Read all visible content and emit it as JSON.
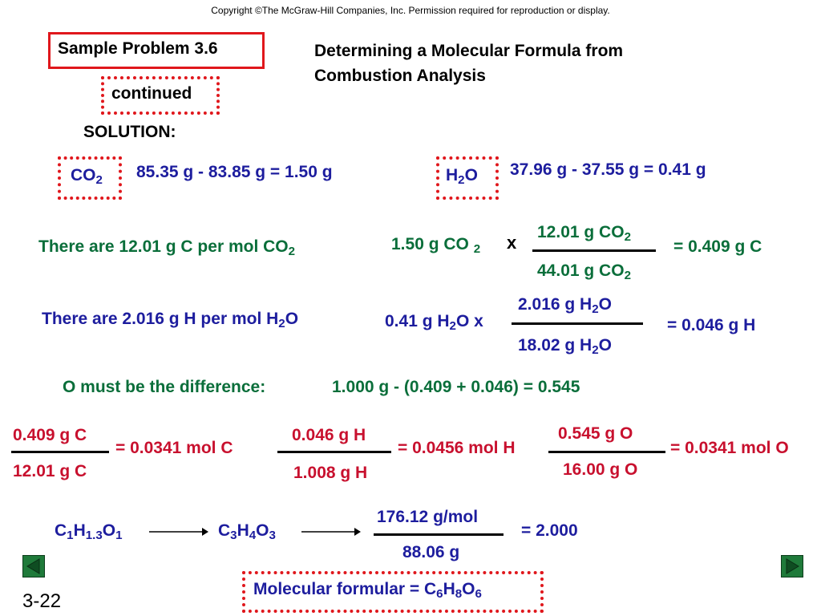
{
  "copyright": "Copyright ©The McGraw-Hill Companies, Inc.  Permission required for reproduction or display.",
  "sample_problem": "Sample Problem 3.6",
  "continued": "continued",
  "heading_line1": "Determining a Molecular Formula from",
  "heading_line2": "Combustion Analysis",
  "solution": "SOLUTION:",
  "co2_label": "CO",
  "co2_calc": "85.35 g - 83.85 g = 1.50 g",
  "h2o_label_h": "H",
  "h2o_label_o": "O",
  "h2o_calc": "37.96 g - 37.55 g = 0.41 g",
  "carbon_statement": "There are 12.01 g C per mol CO",
  "carbon_given": "1.50 g CO",
  "carbon_x": "x",
  "carbon_num": "12.01 g CO",
  "carbon_den": "44.01 g CO",
  "carbon_result": "= 0.409 g C",
  "hydrogen_statement_a": "There are 2.016 g H per mol H",
  "hydrogen_statement_b": "O",
  "hydrogen_given_a": "0.41 g H",
  "hydrogen_given_b": "O x",
  "hydrogen_num_a": "2.016 g H",
  "hydrogen_num_b": "O",
  "hydrogen_den_a": "18.02 g H",
  "hydrogen_den_b": "O",
  "hydrogen_result": "= 0.046 g H",
  "oxygen_statement": "O must be the difference:",
  "oxygen_calc": "1.000 g - (0.409 + 0.046) = 0.545",
  "mol_c_num": "0.409 g C",
  "mol_c_den": "12.01 g C",
  "mol_c_result": "= 0.0341 mol C",
  "mol_h_num": "0.046 g H",
  "mol_h_den": "1.008 g H",
  "mol_h_result": "= 0.0456 mol H",
  "mol_o_num": "0.545 g O",
  "mol_o_den": "16.00 g O",
  "mol_o_result": "= 0.0341 mol O",
  "formula1": {
    "c": "C",
    "c_sub": "1",
    "h": "H",
    "h_sub": "1.3",
    "o": "O",
    "o_sub": "1"
  },
  "formula2": {
    "c": "C",
    "c_sub": "3",
    "h": "H",
    "h_sub": "4",
    "o": "O",
    "o_sub": "3"
  },
  "ratio_num": "176.12 g/mol",
  "ratio_den": "88.06 g",
  "ratio_result": "= 2.000",
  "molecular_label": "Molecular formular = ",
  "molecular": {
    "c": "C",
    "c_sub": "6",
    "h": "H",
    "h_sub": "8",
    "o": "O",
    "o_sub": "6"
  },
  "sub2": "2",
  "slide_number": "3-22",
  "nav": {
    "prev_icon": "triangle-left-icon",
    "next_icon": "triangle-right-icon",
    "color": "#1f7a3a"
  }
}
